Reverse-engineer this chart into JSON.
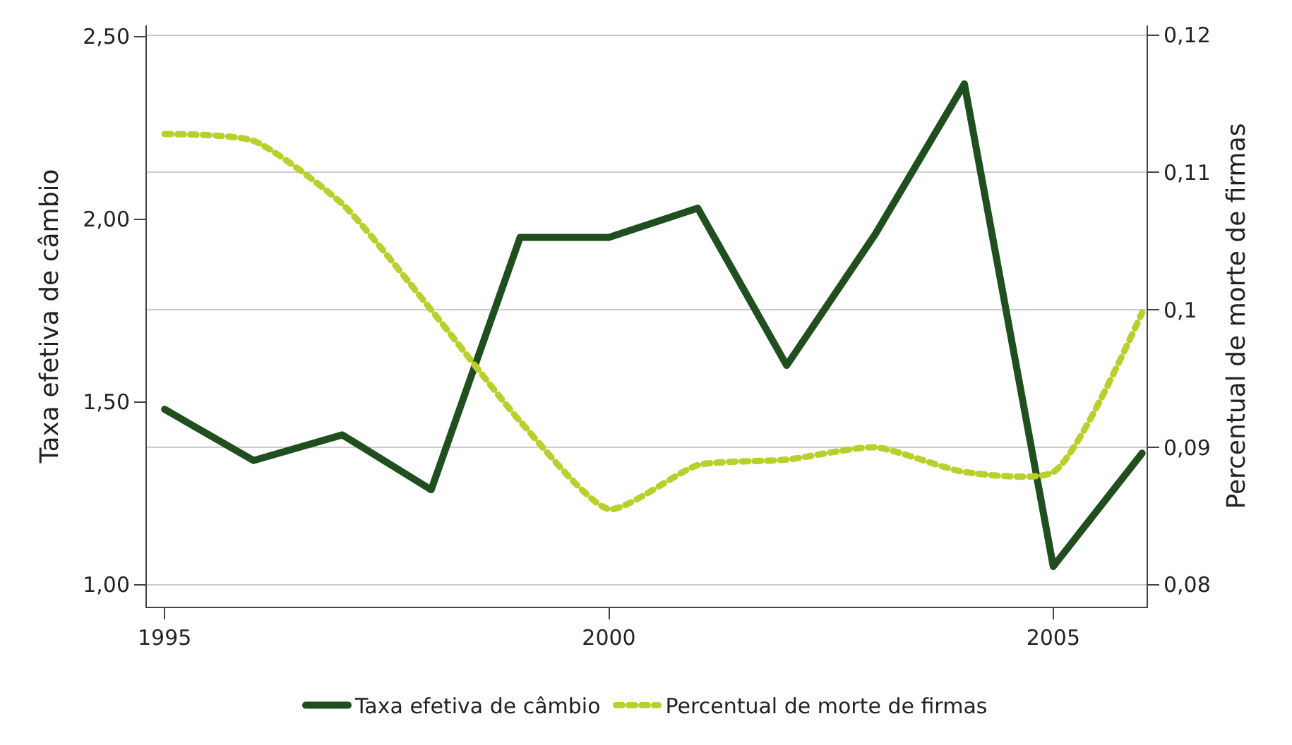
{
  "chart_data": {
    "type": "line",
    "ylabel": "Taxa efetiva de câmbio",
    "y2label": "Percentual de morte de firmas",
    "x": [
      1995,
      1996,
      1997,
      1998,
      1999,
      2000,
      2001,
      2002,
      2003,
      2004,
      2005,
      2006
    ],
    "series": [
      {
        "name": "Taxa efetiva de câmbio",
        "color": "#1f4f1f",
        "line_style": "solid",
        "values": [
          1.48,
          1.34,
          1.41,
          1.26,
          1.95,
          1.95,
          2.03,
          1.6,
          1.96,
          2.37,
          1.05,
          1.36
        ]
      },
      {
        "name": "Percentual de morte de firmas",
        "color": "#b9cf2c",
        "line_style": "dotted",
        "axis": "y2",
        "values": [
          0.1128,
          0.1123,
          0.1077,
          0.1,
          0.0919,
          0.0855,
          0.0887,
          0.0891,
          0.09,
          0.0882,
          0.0882,
          0.0998
        ]
      }
    ],
    "xlim": [
      1994.8,
      2006.05
    ],
    "xticks": [
      1995,
      2000,
      2005
    ],
    "ylim": [
      0.94,
      2.53
    ],
    "yticks": [
      {
        "value": 1,
        "label": "1,00"
      },
      {
        "value": 1.5,
        "label": "1,50"
      },
      {
        "value": 2,
        "label": "2,00"
      },
      {
        "value": 2.5,
        "label": "2,50"
      }
    ],
    "y2lim": [
      0.0784,
      0.1207
    ],
    "y2ticks": [
      {
        "value": 0.08,
        "label": "0,08"
      },
      {
        "value": 0.09,
        "label": "0,09"
      },
      {
        "value": 0.1,
        "label": "0,1"
      },
      {
        "value": 0.11,
        "label": "0,11"
      },
      {
        "value": 0.12,
        "label": "0,12"
      }
    ],
    "grid": "y2",
    "legend": "bottom",
    "marker": "none"
  }
}
